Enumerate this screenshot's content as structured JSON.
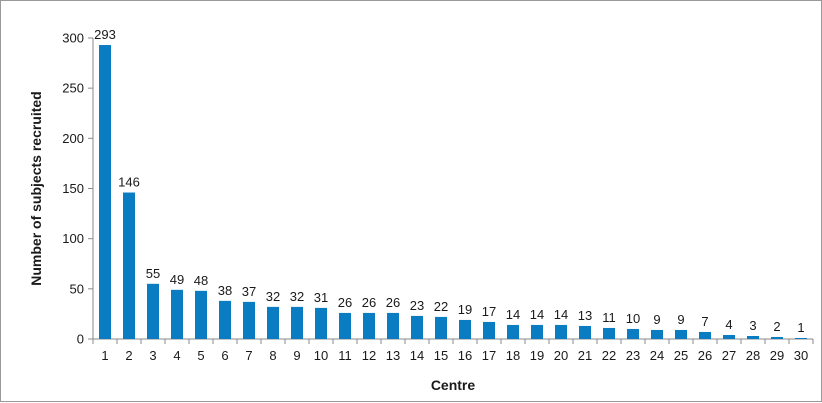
{
  "chart_data": {
    "type": "bar",
    "title": "",
    "xlabel": "Centre",
    "ylabel": "Number of subjects recruited",
    "ylim": [
      0,
      300
    ],
    "yticks": [
      0,
      50,
      100,
      150,
      200,
      250,
      300
    ],
    "grid": false,
    "legend": "none",
    "bar_color": "#0a7dc2",
    "categories": [
      "1",
      "2",
      "3",
      "4",
      "5",
      "6",
      "7",
      "8",
      "9",
      "10",
      "11",
      "12",
      "13",
      "14",
      "15",
      "16",
      "17",
      "18",
      "19",
      "20",
      "21",
      "22",
      "23",
      "24",
      "25",
      "26",
      "27",
      "28",
      "29",
      "30"
    ],
    "values": [
      293,
      146,
      55,
      49,
      48,
      38,
      37,
      32,
      32,
      31,
      26,
      26,
      26,
      23,
      22,
      19,
      17,
      14,
      14,
      14,
      13,
      11,
      10,
      9,
      9,
      7,
      4,
      3,
      2,
      1
    ]
  }
}
